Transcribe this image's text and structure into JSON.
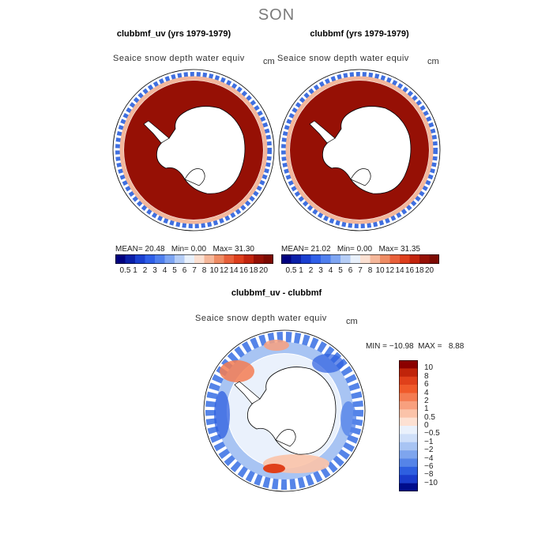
{
  "season": "SON",
  "panels": [
    {
      "title": "clubbmf_uv (yrs 1979-1979)",
      "subtitle": "Seaice snow depth water equiv",
      "units": "cm",
      "mean_label": "MEAN=",
      "mean": "20.48",
      "min_label": "Min=",
      "min": "0.00",
      "max_label": "Max=",
      "max": "31.30"
    },
    {
      "title": "clubbmf (yrs 1979-1979)",
      "subtitle": "Seaice snow depth water equiv",
      "units": "cm",
      "mean_label": "MEAN=",
      "mean": "21.02",
      "min_label": "Min=",
      "min": "0.00",
      "max_label": "Max=",
      "max": "31.35"
    }
  ],
  "abs_colorbar": {
    "labels": [
      "0.5",
      "1",
      "2",
      "3",
      "4",
      "5",
      "6",
      "7",
      "8",
      "10",
      "12",
      "14",
      "16",
      "18",
      "20"
    ],
    "colors": [
      "#00007f",
      "#0a1fa8",
      "#1a3fd0",
      "#2f5fe8",
      "#4f7fee",
      "#7ea5f2",
      "#b5cdf6",
      "#e8f0fb",
      "#fbe0d2",
      "#f5b79a",
      "#ef8c64",
      "#e8603a",
      "#dd3e1c",
      "#c2240d",
      "#961005",
      "#7d0a02"
    ]
  },
  "diff_panel": {
    "title": "clubbmf_uv - clubbmf",
    "subtitle": "Seaice snow depth water equiv",
    "units": "cm",
    "min_label": "MIN =",
    "min": "−10.98",
    "max_label": "MAX =",
    "max": "8.88"
  },
  "diff_colorbar": {
    "labels": [
      "10",
      "8",
      "6",
      "4",
      "2",
      "1",
      "0.5",
      "0",
      "−0.5",
      "−1",
      "−2",
      "−4",
      "−6",
      "−8",
      "−10"
    ],
    "colors": [
      "#8b0000",
      "#c0240a",
      "#e0401a",
      "#f05a2a",
      "#f47c52",
      "#f8a07e",
      "#fbc3a9",
      "#fde1d3",
      "#eaf1fc",
      "#cfdff9",
      "#a8c4f3",
      "#7ea5ee",
      "#5584e8",
      "#2e5fe0",
      "#1a3ccc",
      "#000d8c"
    ]
  }
}
